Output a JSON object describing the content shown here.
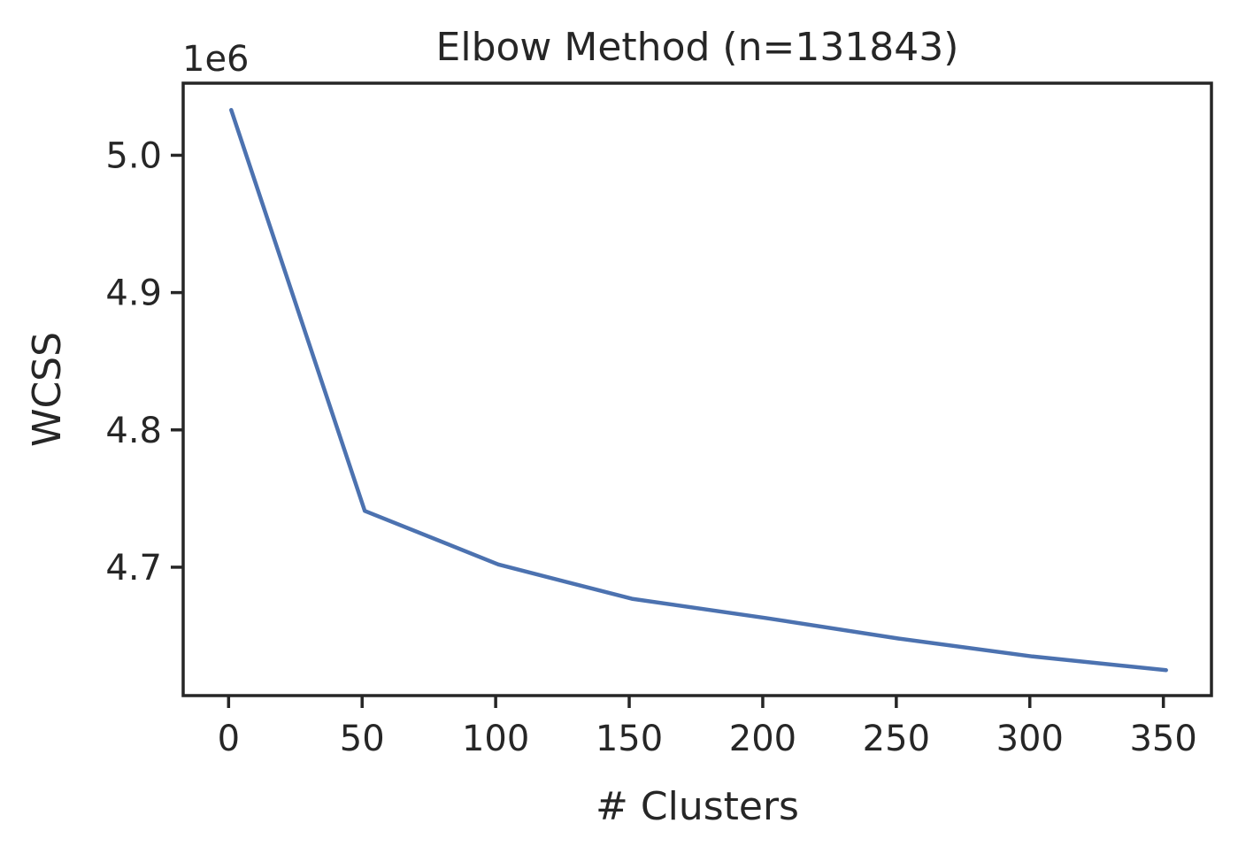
{
  "chart_data": {
    "type": "line",
    "title": "Elbow Method (n=131843)",
    "xlabel": "# Clusters",
    "ylabel": "WCSS",
    "y_offset_label": "1e6",
    "xlim": [
      -17,
      368
    ],
    "ylim": [
      4.6065,
      5.0525
    ],
    "x_ticks": [
      0,
      50,
      100,
      150,
      200,
      250,
      300,
      350
    ],
    "x_tick_labels": [
      "0",
      "50",
      "100",
      "150",
      "200",
      "250",
      "300",
      "350"
    ],
    "y_ticks": [
      4.7,
      4.8,
      4.9,
      5.0
    ],
    "y_tick_labels": [
      "4.7",
      "4.8",
      "4.9",
      "5.0"
    ],
    "grid": false,
    "series": [
      {
        "color": "#4c72b0",
        "x": [
          1,
          51,
          101,
          151,
          201,
          251,
          301,
          351
        ],
        "y": [
          5.033,
          4.741,
          4.702,
          4.677,
          4.663,
          4.648,
          4.635,
          4.625
        ]
      }
    ]
  }
}
